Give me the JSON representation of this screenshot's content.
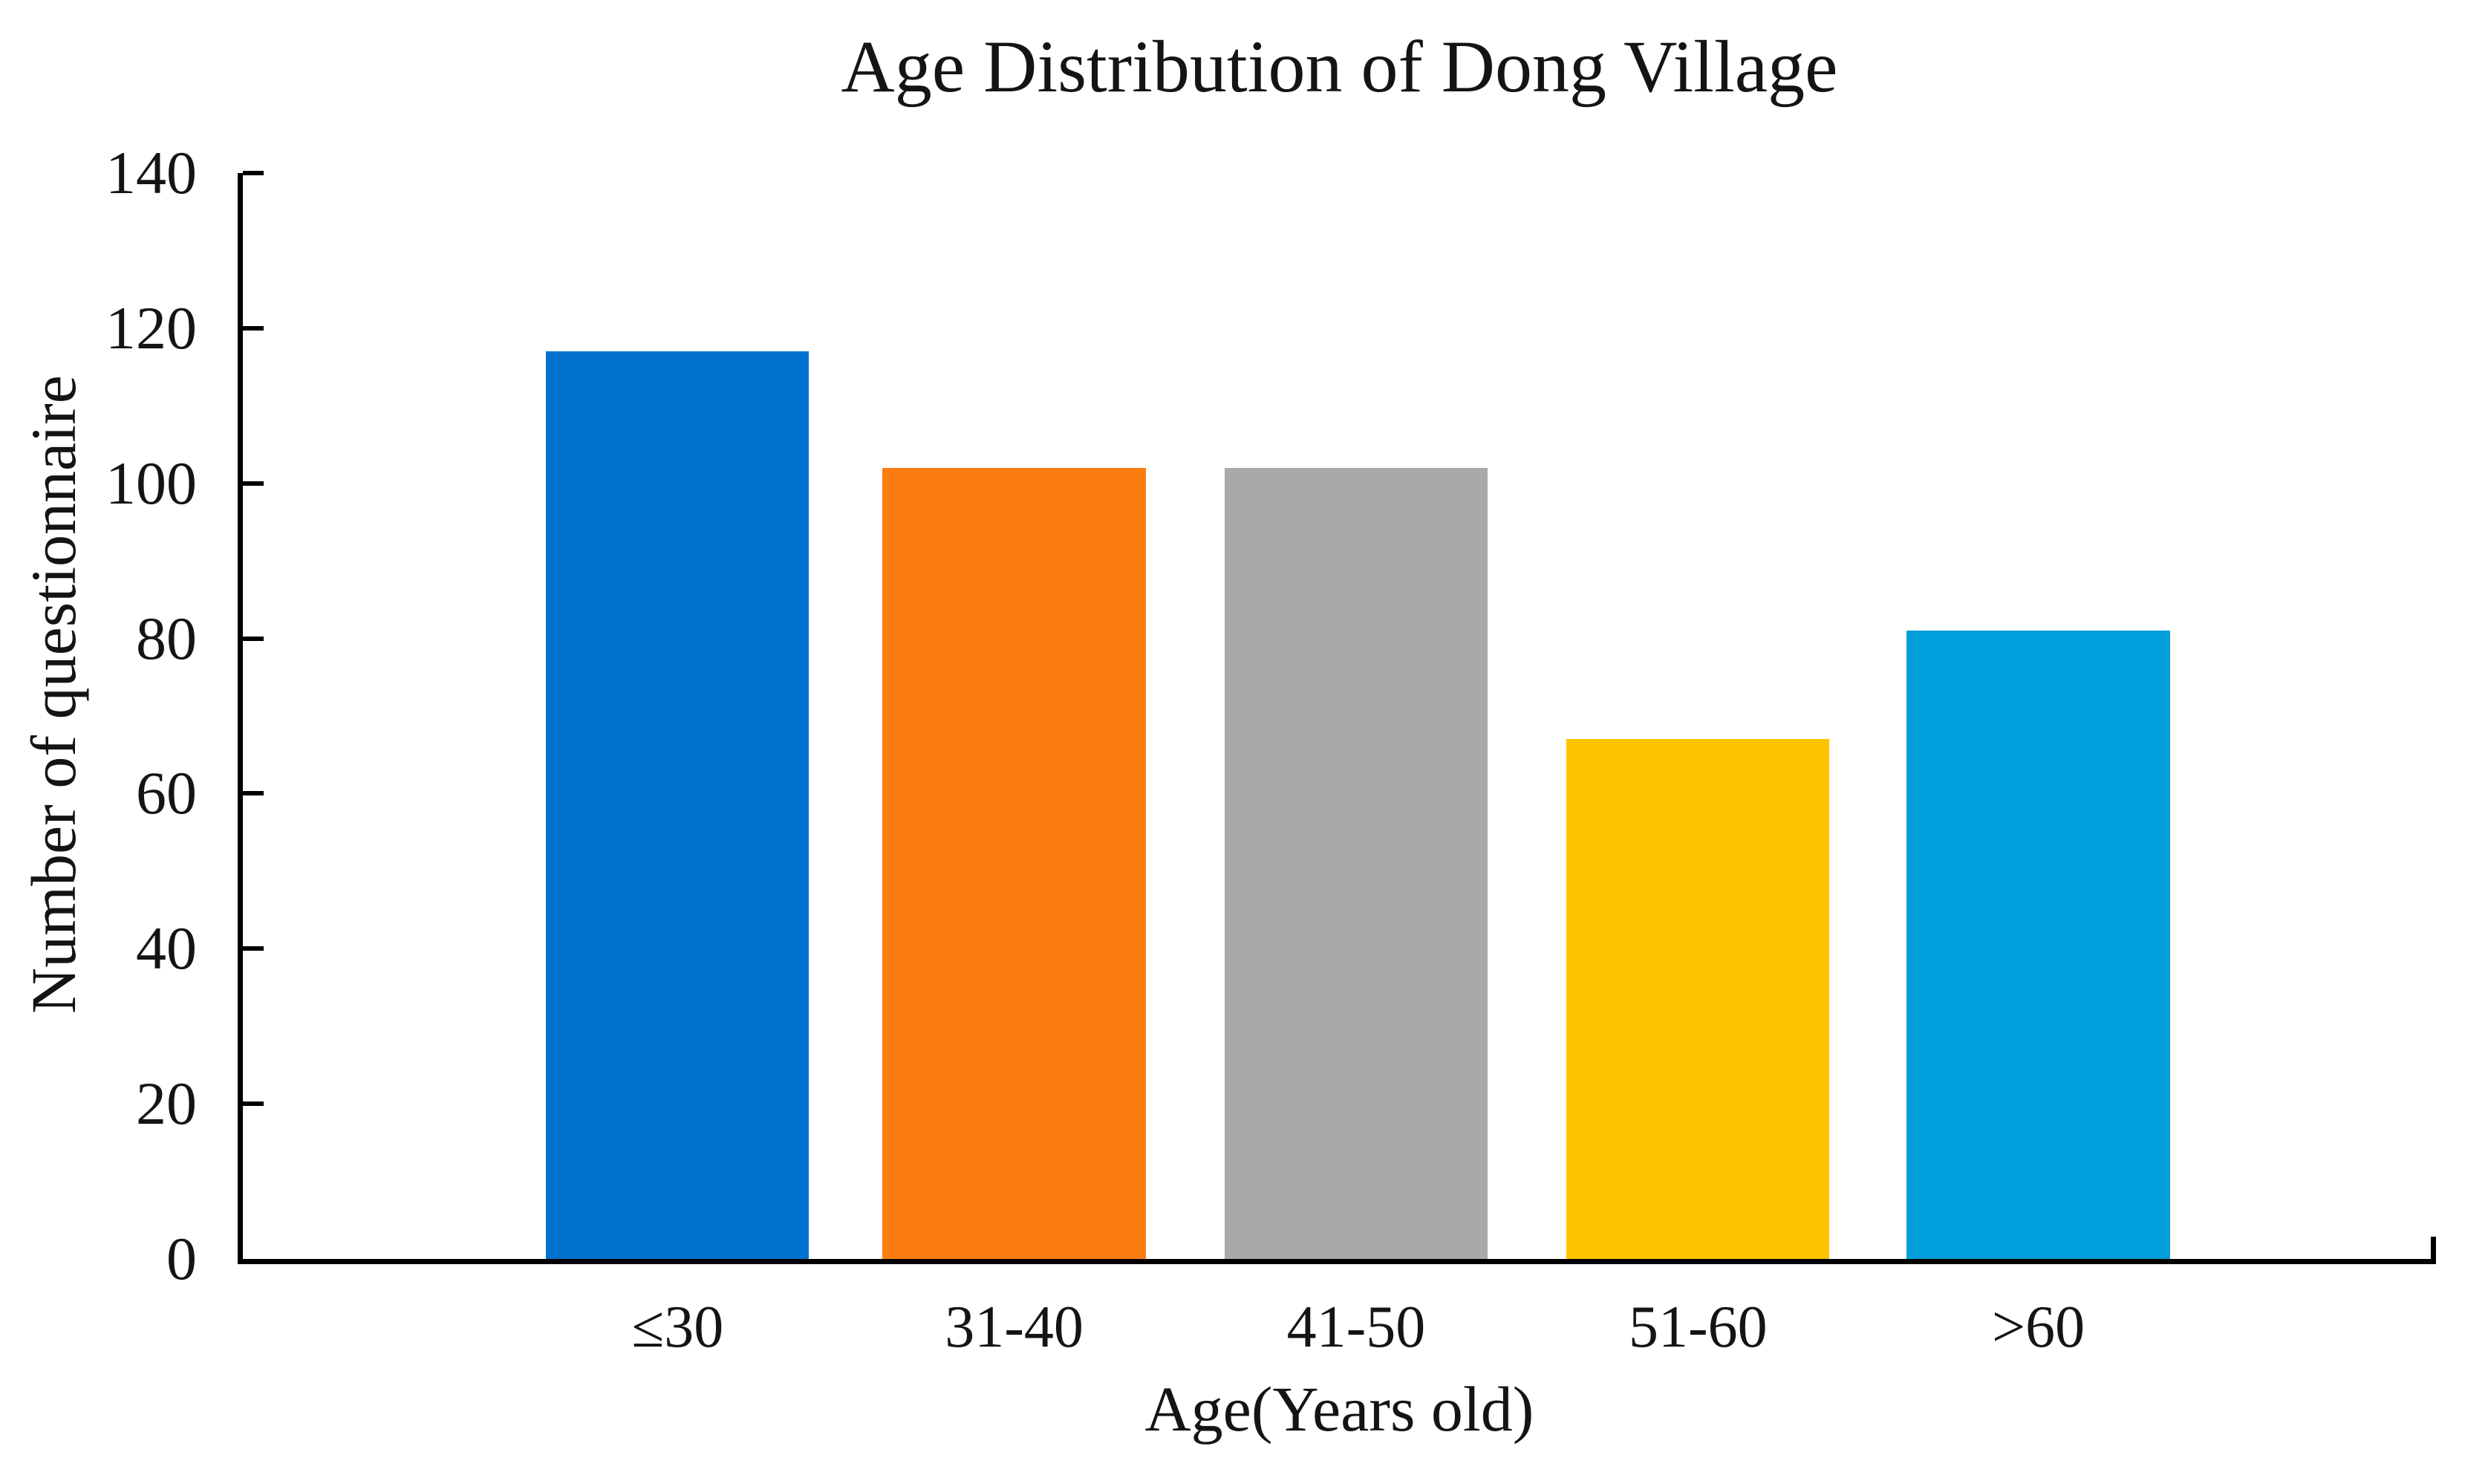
{
  "chart_data": {
    "type": "bar",
    "title": "Age Distribution of Dong Village",
    "xlabel": "Age(Years old)",
    "ylabel": "Number of questionnaire",
    "categories": [
      "≤30",
      "31-40",
      "41-50",
      "51-60",
      ">60"
    ],
    "values": [
      117,
      102,
      102,
      67,
      81
    ],
    "bar_colors": [
      "#0071CE",
      "#FB7D11",
      "#A9A9A9",
      "#FEC201",
      "#009FDC"
    ],
    "ylim": [
      0,
      140
    ],
    "yticks": [
      0,
      20,
      40,
      60,
      80,
      100,
      120,
      140
    ],
    "grid": false,
    "legend": "none",
    "axis_color": "#000000",
    "text_color": "#141414",
    "background": "#FFFFFF"
  }
}
